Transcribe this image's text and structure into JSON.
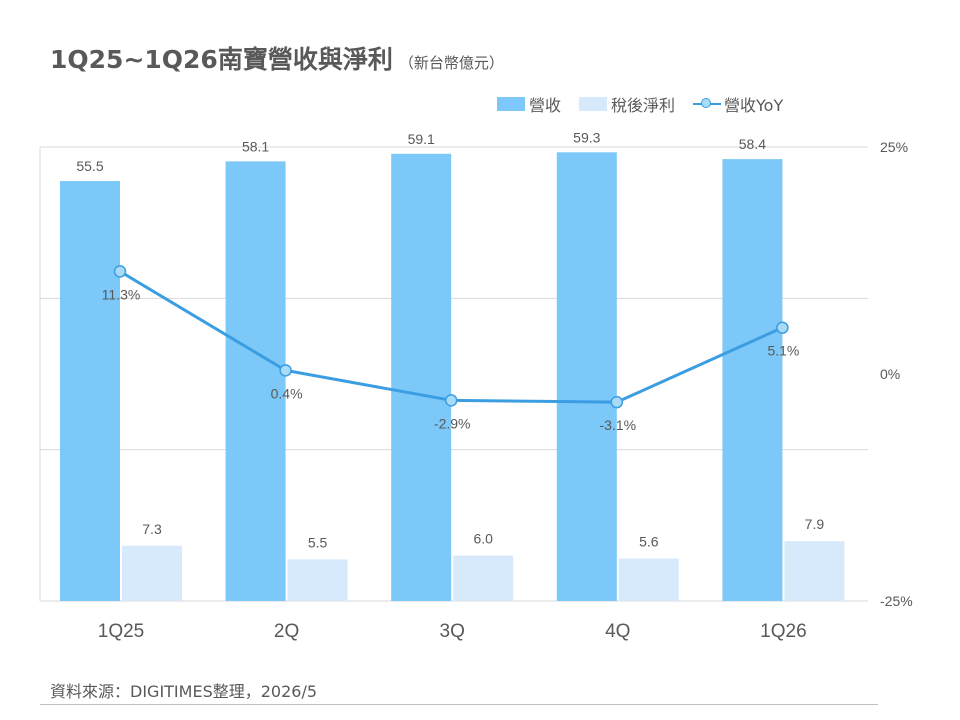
{
  "title": {
    "main": "1Q25~1Q26南寶營收與淨利",
    "unit": "（新台幣億元）"
  },
  "legend": {
    "revenue": "營收",
    "net_income": "稅後淨利",
    "yoy": "營收YoY"
  },
  "source": "資料來源：DIGITIMES整理，2026/5",
  "colors": {
    "revenue_bar": "#7cc8f8",
    "net_income_bar": "#d6eafb",
    "yoy_line": "#3b9de2",
    "yoy_marker": "#a9dbf7",
    "text": "#595959",
    "grid": "#d9d9d9"
  },
  "chart_data": {
    "type": "bar",
    "categories": [
      "1Q25",
      "2Q",
      "3Q",
      "4Q",
      "1Q26"
    ],
    "series": [
      {
        "name": "營收",
        "type": "bar",
        "axis": "left",
        "values": [
          55.5,
          58.1,
          59.1,
          59.3,
          58.4
        ],
        "labels": [
          "55.5",
          "58.1",
          "59.1",
          "59.3",
          "58.4"
        ]
      },
      {
        "name": "稅後淨利",
        "type": "bar",
        "axis": "left",
        "values": [
          7.3,
          5.5,
          6.0,
          5.6,
          7.9
        ],
        "labels": [
          "7.3",
          "5.5",
          "6.0",
          "5.6",
          "7.9"
        ]
      },
      {
        "name": "營收YoY",
        "type": "line",
        "axis": "right",
        "values": [
          11.3,
          0.4,
          -2.9,
          -3.1,
          5.1
        ],
        "labels": [
          "11.3%",
          "0.4%",
          "-2.9%",
          "-3.1%",
          "5.1%"
        ]
      }
    ],
    "y_left": {
      "range": [
        0,
        60
      ],
      "gridlines": [
        20,
        40
      ]
    },
    "y_right": {
      "range": [
        -25,
        25
      ],
      "ticks": [
        "25%",
        "0%",
        "-25%"
      ],
      "tick_values": [
        25,
        0,
        -25
      ]
    },
    "legend_position": "top-right",
    "grid": true
  }
}
